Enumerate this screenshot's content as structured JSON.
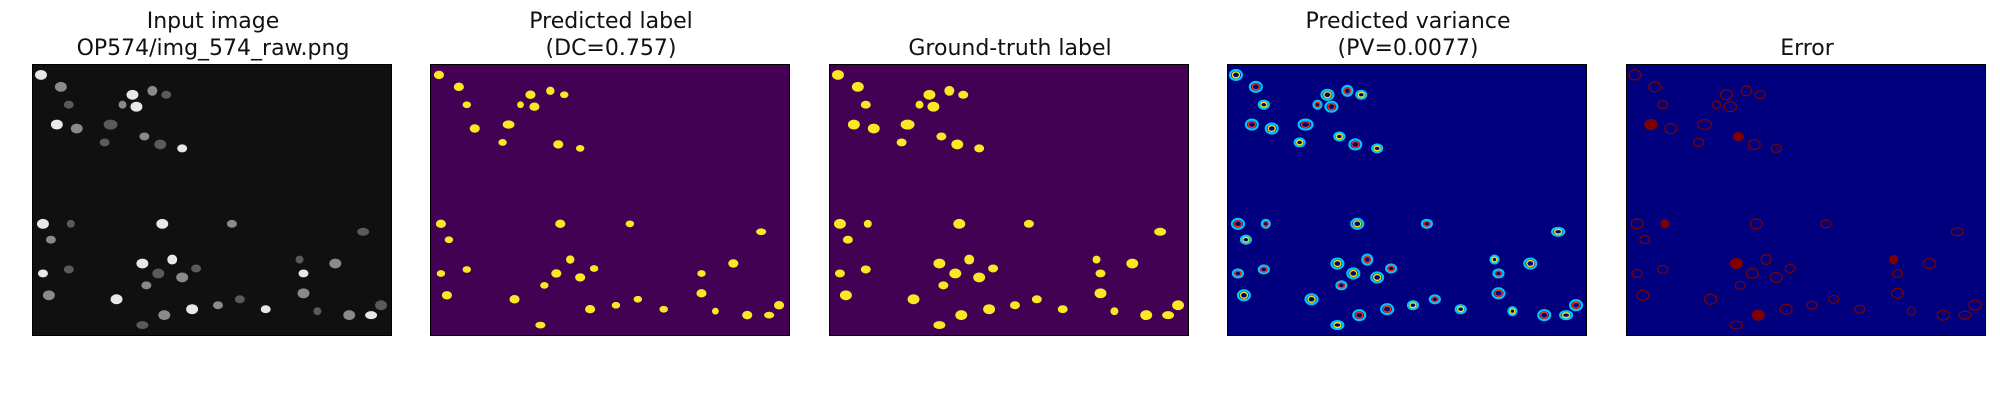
{
  "figure": {
    "panels": [
      {
        "id": "input",
        "title_line1": "Input image",
        "title_line2": "OP574/img_574_raw.png"
      },
      {
        "id": "pred",
        "title_line1": "Predicted label",
        "title_line2": "(DC=0.757)"
      },
      {
        "id": "gt",
        "title_line1": "Ground-truth label",
        "title_line2": ""
      },
      {
        "id": "var",
        "title_line1": "Predicted variance",
        "title_line2": "(PV=0.0077)"
      },
      {
        "id": "err",
        "title_line1": "Error",
        "title_line2": ""
      }
    ]
  },
  "colors": {
    "input_background": "#101010",
    "nucleus_gray": "#bfbfbf",
    "label_background": "#440154",
    "label_foreground": "#fde725",
    "jet_background": "#00007f",
    "error_background": "#00007f",
    "error_edge": "#7f0000"
  }
}
